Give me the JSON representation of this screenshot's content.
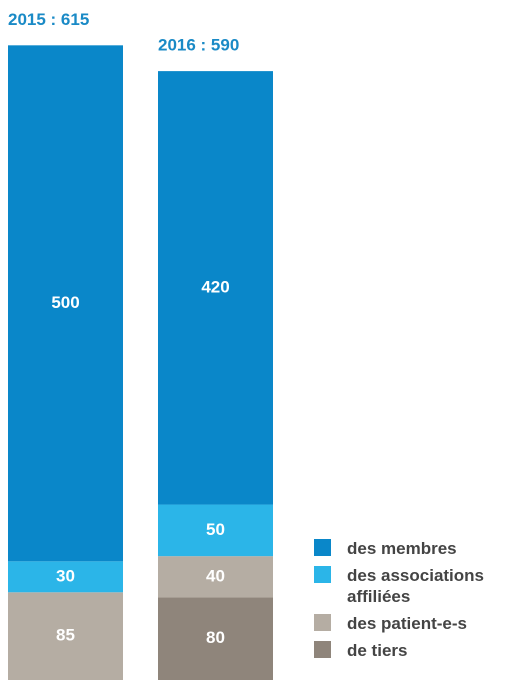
{
  "chart_data": {
    "type": "stacked_bar",
    "categories": [
      "2015 : 615",
      "2016 : 590"
    ],
    "series": [
      {
        "name": "des membres",
        "color": "#0a87c9",
        "values": [
          500,
          420
        ]
      },
      {
        "name": "des associations affiliées",
        "color": "#2bb5e8",
        "values": [
          30,
          50
        ]
      },
      {
        "name": "des patient-e-s",
        "color": "#b5ada3",
        "values": [
          85,
          40
        ]
      },
      {
        "name": "de tiers",
        "color": "#8f857b",
        "values": [
          null,
          80
        ]
      }
    ]
  }
}
